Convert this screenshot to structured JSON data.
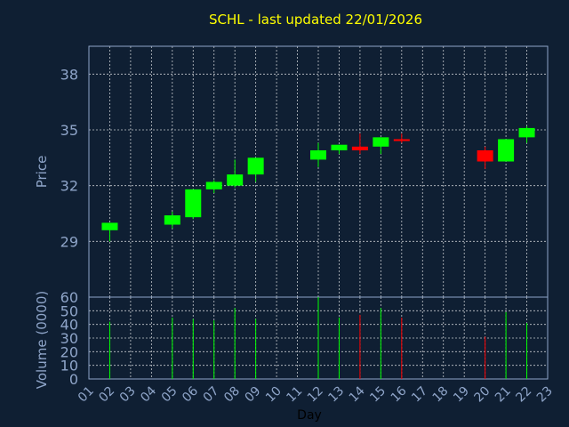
{
  "chart_data": {
    "title": "SCHL - last updated 22/01/2026",
    "type": "candlestick",
    "xlabel": "Day",
    "x_ticks": [
      "01",
      "02",
      "03",
      "04",
      "05",
      "06",
      "07",
      "08",
      "09",
      "10",
      "11",
      "12",
      "13",
      "14",
      "15",
      "16",
      "17",
      "18",
      "19",
      "20",
      "21",
      "22",
      "23"
    ],
    "price_panel": {
      "ylabel": "Price",
      "ylim": [
        26,
        39.5
      ],
      "yticks": [
        "29",
        "32",
        "35",
        "38"
      ],
      "grid": true
    },
    "volume_panel": {
      "ylabel": "Volume (0000)",
      "ylim": [
        0,
        60
      ],
      "yticks": [
        "0",
        "10",
        "20",
        "30",
        "40",
        "50",
        "60"
      ],
      "grid": true
    },
    "colors": {
      "up": "#00ff00",
      "down": "#ff0000",
      "background": "#0f1f33",
      "title": "#ffff00",
      "axis_text": "#8fa5c9",
      "grid": "#ffffff"
    },
    "candles": [
      {
        "day": 2,
        "open": 29.6,
        "close": 30.0,
        "high": 30.0,
        "low": 29.0,
        "volume": 42
      },
      {
        "day": 5,
        "open": 29.9,
        "close": 30.4,
        "high": 30.6,
        "low": 29.7,
        "volume": 45
      },
      {
        "day": 6,
        "open": 30.3,
        "close": 31.8,
        "high": 31.8,
        "low": 30.2,
        "volume": 44
      },
      {
        "day": 7,
        "open": 31.8,
        "close": 32.2,
        "high": 32.3,
        "low": 31.6,
        "volume": 43
      },
      {
        "day": 8,
        "open": 32.0,
        "close": 32.6,
        "high": 33.4,
        "low": 31.9,
        "volume": 52
      },
      {
        "day": 9,
        "open": 32.6,
        "close": 33.5,
        "high": 33.5,
        "low": 32.2,
        "volume": 44
      },
      {
        "day": 12,
        "open": 33.4,
        "close": 33.9,
        "high": 34.3,
        "low": 33.0,
        "volume": 60
      },
      {
        "day": 13,
        "open": 33.9,
        "close": 34.2,
        "high": 34.2,
        "low": 33.7,
        "volume": 45
      },
      {
        "day": 14,
        "open": 34.1,
        "close": 33.9,
        "high": 34.8,
        "low": 33.7,
        "volume": 47
      },
      {
        "day": 15,
        "open": 34.1,
        "close": 34.6,
        "high": 34.6,
        "low": 33.7,
        "volume": 52
      },
      {
        "day": 16,
        "open": 34.5,
        "close": 34.4,
        "high": 34.8,
        "low": 34.3,
        "volume": 45
      },
      {
        "day": 20,
        "open": 33.9,
        "close": 33.3,
        "high": 34.1,
        "low": 32.9,
        "volume": 31
      },
      {
        "day": 21,
        "open": 33.3,
        "close": 34.5,
        "high": 34.5,
        "low": 33.3,
        "volume": 49
      },
      {
        "day": 22,
        "open": 34.6,
        "close": 35.1,
        "high": 35.2,
        "low": 34.3,
        "volume": 41
      }
    ]
  }
}
